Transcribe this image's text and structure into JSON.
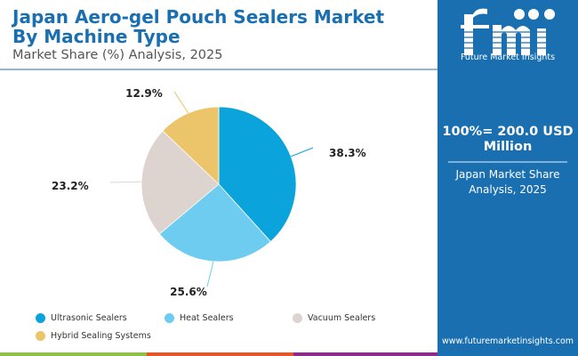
{
  "header": {
    "title_line1": "Japan Aero-gel Pouch Sealers Market",
    "title_line2": "By Machine Type",
    "subtitle": "Market Share (%) Analysis, 2025"
  },
  "side_panel": {
    "logo_text": "Future Market Insights",
    "total_line1": "100%= 200.0 USD",
    "total_line2": "Million",
    "sub_line1": "Japan Market Share",
    "sub_line2": "Analysis, 2025",
    "url": "www.futuremarketinsights.com"
  },
  "colors": {
    "brand": "#1a6fb0",
    "footer_bar": [
      "#8cc04b",
      "#e2572b",
      "#8a2d86",
      "#1a6fb0"
    ]
  },
  "chart_data": {
    "type": "pie",
    "title": "Japan Aero-gel Pouch Sealers Market By Machine Type",
    "subtitle": "Market Share (%) Analysis, 2025",
    "start_angle_deg": 0,
    "direction": "clockwise",
    "legend_position": "bottom",
    "slices": [
      {
        "label": "Ultrasonic Sealers",
        "value": 38.3,
        "display": "38.3%",
        "color": "#0aa3dc"
      },
      {
        "label": "Heat Sealers",
        "value": 25.6,
        "display": "25.6%",
        "color": "#6dccf0"
      },
      {
        "label": "Vacuum Sealers",
        "value": 23.2,
        "display": "23.2%",
        "color": "#ddd3cf"
      },
      {
        "label": "Hybrid Sealing Systems",
        "value": 12.9,
        "display": "12.9%",
        "color": "#ecc46a"
      }
    ]
  }
}
